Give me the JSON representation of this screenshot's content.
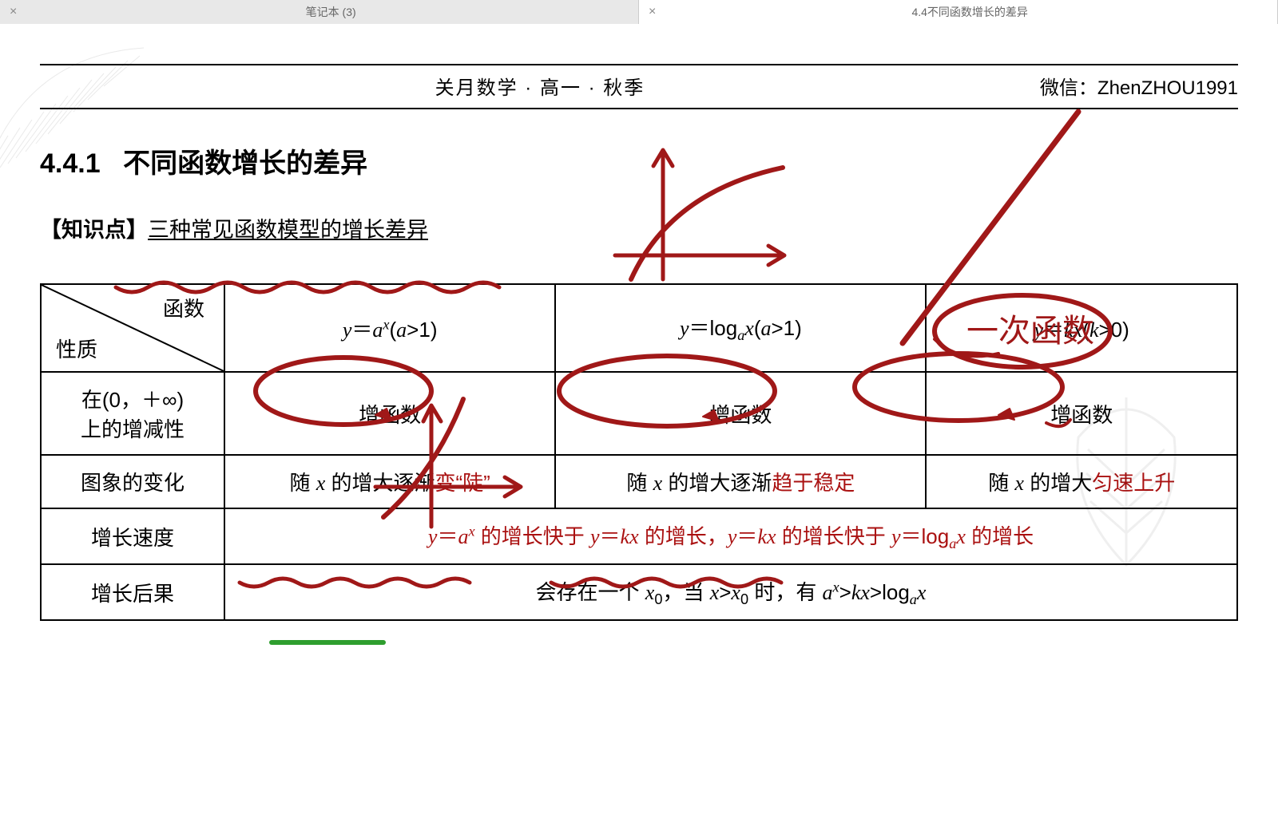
{
  "tabs": {
    "left": {
      "title": "笔记本 (3)"
    },
    "right": {
      "title": "4.4不同函数增长的差异"
    }
  },
  "header": {
    "center": "关月数学  ·  高一  ·  秋季",
    "right": "微信：ZhenZHOU1991"
  },
  "section": {
    "number": "4.4.1",
    "title": "不同函数增长的差异"
  },
  "knowledge": {
    "tag": "【知识点】",
    "text": "三种常见函数模型的增长差异"
  },
  "table": {
    "corner_top": "函数",
    "corner_bot": "性质",
    "col1_html": "<span class='ital'>y</span>＝<span class='ital'>a<sup>x</sup></span>(<span class='ital'>a</span>&gt;1)",
    "col2_html": "<span class='ital'>y</span>＝log<sub class='ital'>a</sub><span class='ital'>x</span>(<span class='ital'>a</span>&gt;1)",
    "col3_html": "<span class='ital'>y</span>＝<span class='ital'>kx</span>(<span class='ital'>k</span>&gt;0)",
    "row1_head": "在(0，＋∞)<br>上的增减性",
    "row1_c1": "增函数",
    "row1_c2": "增函数",
    "row1_c3": "增函数",
    "row2_head": "图象的变化",
    "row2_c1_html": "随 <span class='ital'>x</span> 的增大逐渐<span class='redtext'>变“陡”</span>",
    "row2_c2_html": "随 <span class='ital'>x</span> 的增大逐渐<span class='redtext'>趋于稳定</span>",
    "row2_c3_html": "随 <span class='ital'>x</span> 的增大<span class='redtext'>匀速上升</span>",
    "row3_head": "增长速度",
    "row3_html": "<span class='redtext'><span class='ital'>y</span>＝<span class='ital'>a<sup>x</sup></span> 的增长快于 <span class='ital'>y</span>＝<span class='ital'>kx</span> 的增长，<span class='ital'>y</span>＝<span class='ital'>kx</span> 的增长快于 <span class='ital'>y</span>＝log<sub class='ital'>a</sub><span class='ital'>x</span> 的增长</span>",
    "row4_head": "增长后果",
    "row4_html": "会存在一个 <span class='ital'>x</span><sub>0</sub>，当 <span class='ital'>x</span>&gt;<span class='ital'>x</span><sub>0</sub> 时，有 <span class='ital'>a<sup>x</sup></span>&gt;<span class='ital'>kx</span>&gt;log<sub class='ital'>a</sub><span class='ital'>x</span>"
  },
  "handwriting": {
    "note_right": "一次函数",
    "ink_color": "#a01818",
    "green": "#2e9e2e"
  }
}
